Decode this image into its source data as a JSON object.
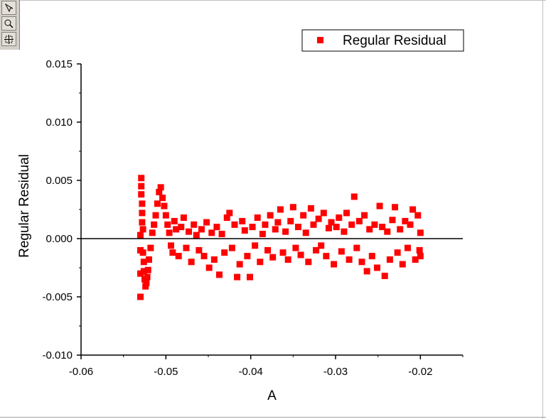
{
  "toolbar": {
    "buttons": [
      {
        "icon": "data-reader-icon"
      },
      {
        "icon": "zoom-icon"
      },
      {
        "icon": "data-selector-icon"
      }
    ]
  },
  "chart_data": {
    "type": "scatter",
    "xlabel": "A",
    "ylabel": "Regular Residual",
    "xlim": [
      -0.06,
      -0.015
    ],
    "ylim": [
      -0.01,
      0.015
    ],
    "xticks": [
      "-0.06",
      "-0.05",
      "-0.04",
      "-0.03",
      "-0.02"
    ],
    "xtick_values": [
      -0.06,
      -0.05,
      -0.04,
      -0.03,
      -0.02
    ],
    "yticks": [
      "0.015",
      "0.010",
      "0.005",
      "0.000",
      "-0.005",
      "-0.010"
    ],
    "ytick_values": [
      0.015,
      0.01,
      0.005,
      0.0,
      -0.005,
      -0.01
    ],
    "zero_line": 0.0,
    "legend": {
      "entry": "Regular Residual",
      "position": "top-right"
    },
    "marker": {
      "shape": "square",
      "color": "#ff0000"
    },
    "series": [
      {
        "name": "Regular Residual",
        "points": [
          [
            -0.053,
            -0.005
          ],
          [
            -0.053,
            -0.003
          ],
          [
            -0.053,
            -0.001
          ],
          [
            -0.053,
            0.0003
          ],
          [
            -0.0529,
            0.0052
          ],
          [
            -0.0529,
            0.0045
          ],
          [
            -0.0529,
            0.0038
          ],
          [
            -0.0528,
            0.003
          ],
          [
            -0.0528,
            0.0022
          ],
          [
            -0.0528,
            0.0014
          ],
          [
            -0.0527,
            0.0008
          ],
          [
            -0.0527,
            -0.0012
          ],
          [
            -0.0526,
            -0.002
          ],
          [
            -0.0526,
            -0.0028
          ],
          [
            -0.0525,
            -0.0035
          ],
          [
            -0.0524,
            -0.0041
          ],
          [
            -0.0523,
            -0.0038
          ],
          [
            -0.0522,
            -0.0033
          ],
          [
            -0.0521,
            -0.0027
          ],
          [
            -0.052,
            -0.0018
          ],
          [
            -0.0518,
            -0.0008
          ],
          [
            -0.0516,
            0.0005
          ],
          [
            -0.0514,
            0.0012
          ],
          [
            -0.0512,
            0.002
          ],
          [
            -0.051,
            0.003
          ],
          [
            -0.0508,
            0.004
          ],
          [
            -0.0506,
            0.0044
          ],
          [
            -0.0504,
            0.0035
          ],
          [
            -0.0502,
            0.0028
          ],
          [
            -0.05,
            0.002
          ],
          [
            -0.0498,
            0.0012
          ],
          [
            -0.0496,
            0.0005
          ],
          [
            -0.0494,
            -0.0006
          ],
          [
            -0.0492,
            -0.0012
          ],
          [
            -0.049,
            0.0015
          ],
          [
            -0.0488,
            0.0008
          ],
          [
            -0.0485,
            -0.0015
          ],
          [
            -0.0482,
            0.001
          ],
          [
            -0.0479,
            0.0018
          ],
          [
            -0.0476,
            -0.0008
          ],
          [
            -0.0473,
            0.0006
          ],
          [
            -0.047,
            -0.002
          ],
          [
            -0.0467,
            0.0012
          ],
          [
            -0.0464,
            0.0003
          ],
          [
            -0.0461,
            -0.001
          ],
          [
            -0.0458,
            0.0008
          ],
          [
            -0.0455,
            -0.0015
          ],
          [
            -0.0452,
            0.0014
          ],
          [
            -0.0449,
            -0.0025
          ],
          [
            -0.0446,
            0.0005
          ],
          [
            -0.0443,
            -0.0018
          ],
          [
            -0.044,
            0.001
          ],
          [
            -0.0437,
            -0.0031
          ],
          [
            -0.0434,
            0.0004
          ],
          [
            -0.0431,
            -0.0012
          ],
          [
            -0.0428,
            0.0018
          ],
          [
            -0.0425,
            0.0022
          ],
          [
            -0.0422,
            -0.0008
          ],
          [
            -0.0419,
            0.0012
          ],
          [
            -0.0416,
            -0.0033
          ],
          [
            -0.0413,
            -0.0022
          ],
          [
            -0.041,
            0.0015
          ],
          [
            -0.0407,
            0.0007
          ],
          [
            -0.0404,
            -0.0015
          ],
          [
            -0.0401,
            -0.0033
          ],
          [
            -0.0398,
            0.001
          ],
          [
            -0.0395,
            -0.0006
          ],
          [
            -0.0392,
            0.0018
          ],
          [
            -0.0389,
            -0.002
          ],
          [
            -0.0386,
            0.0004
          ],
          [
            -0.0383,
            0.0012
          ],
          [
            -0.038,
            -0.001
          ],
          [
            -0.0377,
            0.002
          ],
          [
            -0.0374,
            -0.0016
          ],
          [
            -0.0371,
            0.0008
          ],
          [
            -0.0368,
            0.0014
          ],
          [
            -0.0365,
            0.0025
          ],
          [
            -0.0362,
            -0.0012
          ],
          [
            -0.0359,
            0.0006
          ],
          [
            -0.0356,
            -0.0018
          ],
          [
            -0.0353,
            0.0015
          ],
          [
            -0.035,
            0.0027
          ],
          [
            -0.0347,
            -0.0008
          ],
          [
            -0.0344,
            0.001
          ],
          [
            -0.0341,
            -0.0014
          ],
          [
            -0.0338,
            0.002
          ],
          [
            -0.0335,
            0.0005
          ],
          [
            -0.0332,
            -0.002
          ],
          [
            -0.0329,
            0.0026
          ],
          [
            -0.0326,
            0.0012
          ],
          [
            -0.0323,
            -0.001
          ],
          [
            -0.032,
            0.0017
          ],
          [
            -0.0317,
            -0.0006
          ],
          [
            -0.0314,
            0.0022
          ],
          [
            -0.0311,
            -0.0015
          ],
          [
            -0.0308,
            0.0009
          ],
          [
            -0.0305,
            0.0014
          ],
          [
            -0.0302,
            -0.0022
          ],
          [
            -0.0299,
            0.001
          ],
          [
            -0.0296,
            0.0018
          ],
          [
            -0.0293,
            -0.0011
          ],
          [
            -0.029,
            0.0006
          ],
          [
            -0.0287,
            0.0022
          ],
          [
            -0.0284,
            -0.0018
          ],
          [
            -0.0281,
            0.0012
          ],
          [
            -0.0278,
            0.0036
          ],
          [
            -0.0275,
            -0.0008
          ],
          [
            -0.0272,
            0.0015
          ],
          [
            -0.0269,
            -0.002
          ],
          [
            -0.0266,
            0.002
          ],
          [
            -0.0263,
            -0.0028
          ],
          [
            -0.026,
            0.0008
          ],
          [
            -0.0257,
            -0.0015
          ],
          [
            -0.0254,
            0.0012
          ],
          [
            -0.0251,
            -0.0025
          ],
          [
            -0.0248,
            0.0028
          ],
          [
            -0.0245,
            0.001
          ],
          [
            -0.0242,
            -0.0032
          ],
          [
            -0.0239,
            0.0006
          ],
          [
            -0.0236,
            -0.0018
          ],
          [
            -0.0233,
            0.0016
          ],
          [
            -0.023,
            0.0027
          ],
          [
            -0.0227,
            -0.0012
          ],
          [
            -0.0224,
            0.0008
          ],
          [
            -0.0221,
            -0.0022
          ],
          [
            -0.0218,
            0.0015
          ],
          [
            -0.0215,
            -0.0008
          ],
          [
            -0.0212,
            0.0012
          ],
          [
            -0.0209,
            0.0025
          ],
          [
            -0.0206,
            -0.0018
          ],
          [
            -0.0203,
            0.002
          ],
          [
            -0.0201,
            -0.001
          ],
          [
            -0.02,
            0.0005
          ],
          [
            -0.02,
            -0.0015
          ]
        ]
      }
    ]
  }
}
